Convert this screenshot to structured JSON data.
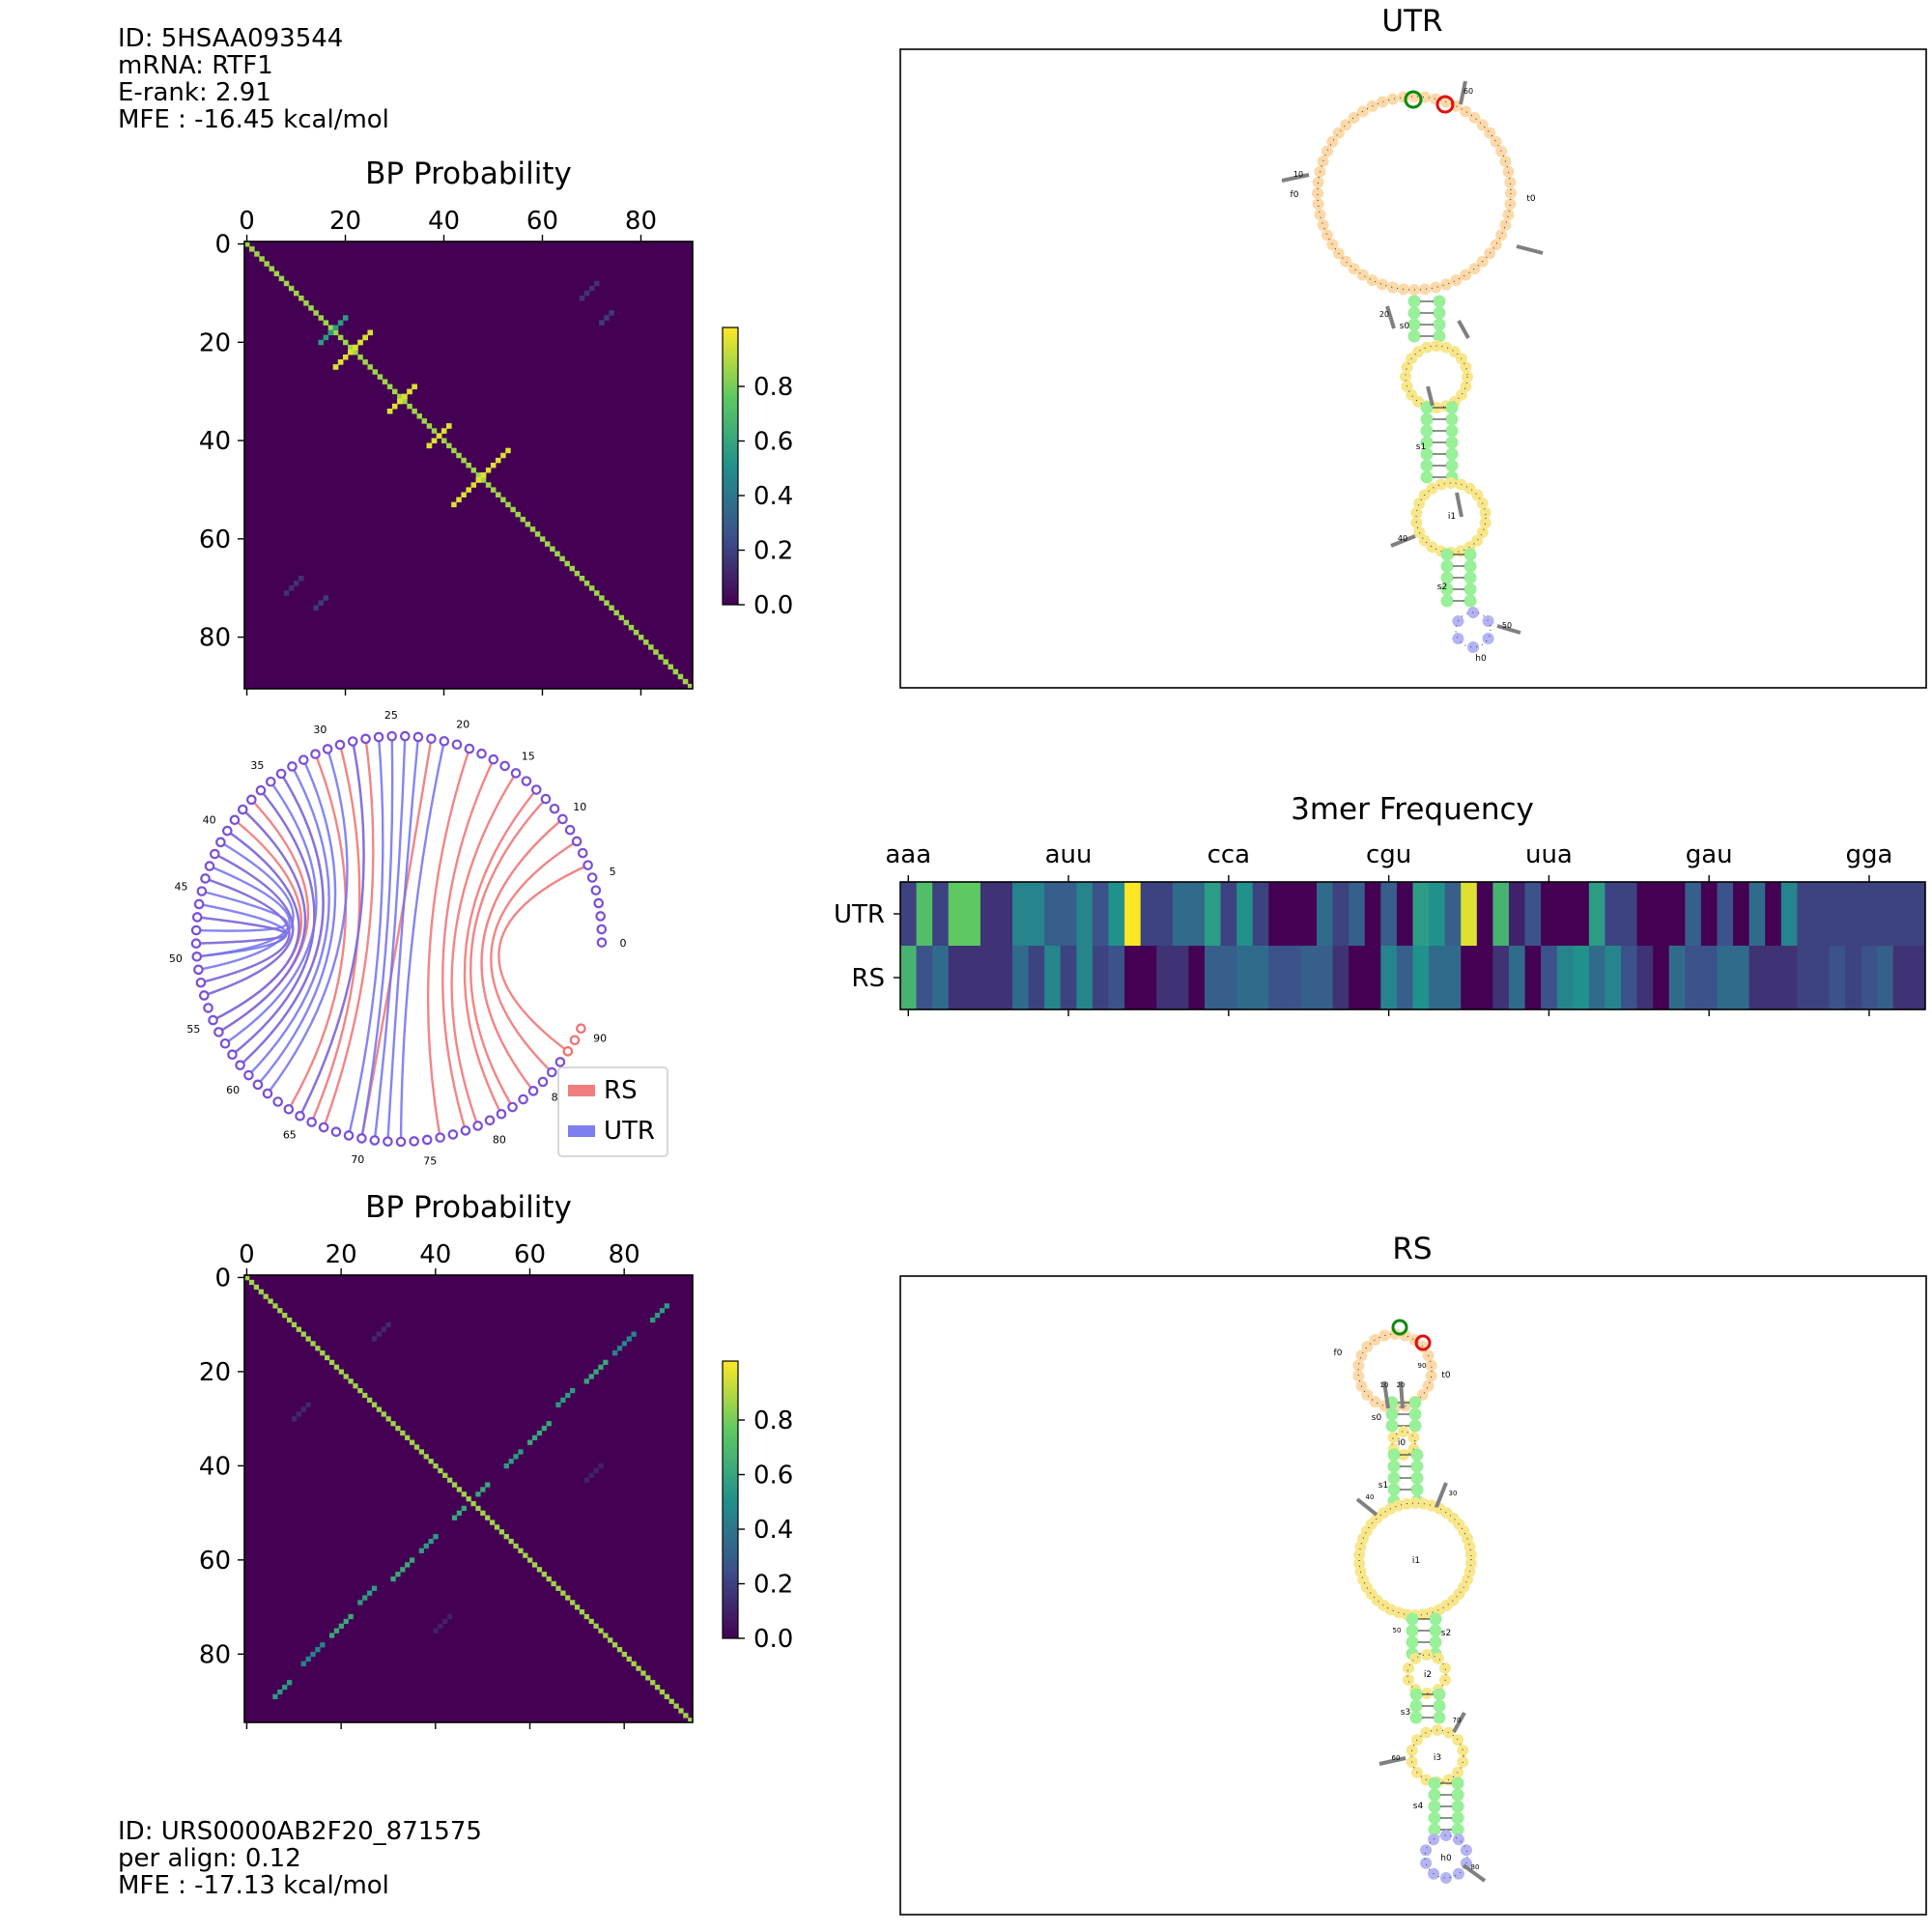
{
  "utr_info": {
    "id": "ID: 5HSAA093544",
    "mrna": "mRNA: RTF1",
    "erank": "E-rank: 2.91",
    "mfe": "MFE : -16.45 kcal/mol"
  },
  "rs_info": {
    "id": "ID: URS0000AB2F20_871575",
    "align": "per align: 0.12",
    "mfe": "MFE : -17.13 kcal/mol"
  },
  "colors": {
    "viridis_low": "#440154",
    "viridis_mid": "#21918c",
    "viridis_high": "#fde725",
    "rs_arc": "#f07070",
    "utr_arc": "#7070f0",
    "stem": "#98f098",
    "loop": "#f8e68a",
    "fiveprime": "#fcd9a8",
    "hairpin": "#b4b4f4"
  },
  "chart_data": [
    {
      "type": "heatmap",
      "id": "bp_utr",
      "title": "BP Probability",
      "size": 91,
      "xticks": [
        0,
        20,
        40,
        60,
        80
      ],
      "yticks": [
        0,
        20,
        40,
        60,
        80
      ],
      "colorbar_ticks": [
        "0.0",
        "0.2",
        "0.4",
        "0.6",
        "0.8"
      ],
      "diagonal": true,
      "pairs": [
        {
          "i": 18,
          "j": 25,
          "n": 8,
          "p": 0.95
        },
        {
          "i": 29,
          "j": 34,
          "n": 6,
          "p": 0.95
        },
        {
          "i": 37,
          "j": 41,
          "n": 5,
          "p": 0.95
        },
        {
          "i": 42,
          "j": 53,
          "n": 7,
          "p": 0.95
        },
        {
          "i": 15,
          "j": 20,
          "n": 4,
          "p": 0.55
        },
        {
          "i": 8,
          "j": 71,
          "n": 4,
          "p": 0.15
        },
        {
          "i": 14,
          "j": 74,
          "n": 3,
          "p": 0.18
        }
      ]
    },
    {
      "type": "arc",
      "id": "arc",
      "n": 91,
      "tick_labels": [
        "0",
        "5",
        "10",
        "15",
        "20",
        "25",
        "30",
        "35",
        "40",
        "45",
        "50",
        "55",
        "60",
        "65",
        "70",
        "75",
        "80",
        "85",
        "90"
      ],
      "legend": [
        "RS",
        "UTR"
      ],
      "rs_pairs": [
        [
          6,
          88
        ],
        [
          8,
          86
        ],
        [
          10,
          84
        ],
        [
          12,
          82
        ],
        [
          13,
          81
        ],
        [
          15,
          79
        ],
        [
          17,
          78
        ],
        [
          19,
          76
        ],
        [
          22,
          70
        ],
        [
          27,
          67
        ],
        [
          29,
          66
        ],
        [
          31,
          64
        ],
        [
          37,
          56
        ],
        [
          39,
          55
        ]
      ],
      "utr_pairs": [
        [
          21,
          73
        ],
        [
          23,
          72
        ],
        [
          24,
          71
        ],
        [
          25,
          70
        ],
        [
          26,
          69
        ],
        [
          30,
          62
        ],
        [
          32,
          61
        ],
        [
          33,
          60
        ],
        [
          41,
          51
        ],
        [
          43,
          50
        ],
        [
          45,
          48
        ],
        [
          46,
          50
        ],
        [
          35,
          57
        ]
      ],
      "both_pairs": [
        [
          28,
          65
        ],
        [
          34,
          59
        ],
        [
          36,
          58
        ],
        [
          38,
          56
        ],
        [
          40,
          55
        ],
        [
          42,
          53
        ],
        [
          44,
          52
        ],
        [
          47,
          49
        ]
      ]
    },
    {
      "type": "heatmap",
      "id": "kmer",
      "title": "3mer Frequency",
      "rows": [
        "UTR",
        "RS"
      ],
      "xtick_labels": [
        "aaa",
        "auu",
        "cca",
        "cgu",
        "uua",
        "gau",
        "gga"
      ],
      "utr_values": [
        0.2,
        0.7,
        0.2,
        0.75,
        0.75,
        0.15,
        0.15,
        0.45,
        0.45,
        0.3,
        0.3,
        0.45,
        0.25,
        0.5,
        1.0,
        0.2,
        0.2,
        0.35,
        0.35,
        0.55,
        0.2,
        0.5,
        0.2,
        0.0,
        0.0,
        0.0,
        0.35,
        0.2,
        0.3,
        0.0,
        0.3,
        0.0,
        0.55,
        0.5,
        0.3,
        0.95,
        0.0,
        0.65,
        0.1,
        0.25,
        0.0,
        0.0,
        0.0,
        0.55,
        0.2,
        0.2,
        0.0,
        0.0,
        0.0,
        0.3,
        0.0,
        0.25,
        0.0,
        0.35,
        0.0,
        0.45,
        0.2,
        0.2,
        0.2,
        0.2,
        0.2,
        0.2,
        0.2,
        0.2
      ],
      "rs_values": [
        0.65,
        0.25,
        0.35,
        0.15,
        0.15,
        0.15,
        0.15,
        0.35,
        0.2,
        0.45,
        0.2,
        0.45,
        0.2,
        0.25,
        0.0,
        0.0,
        0.15,
        0.15,
        0.0,
        0.3,
        0.3,
        0.35,
        0.35,
        0.25,
        0.25,
        0.3,
        0.3,
        0.15,
        0.0,
        0.0,
        0.45,
        0.3,
        0.5,
        0.35,
        0.35,
        0.0,
        0.0,
        0.15,
        0.35,
        0.0,
        0.25,
        0.45,
        0.5,
        0.35,
        0.45,
        0.25,
        0.15,
        0.0,
        0.35,
        0.25,
        0.25,
        0.35,
        0.35,
        0.15,
        0.15,
        0.15,
        0.2,
        0.2,
        0.25,
        0.2,
        0.25,
        0.3,
        0.15,
        0.15
      ]
    },
    {
      "type": "heatmap",
      "id": "bp_rs",
      "title": "BP Probability",
      "size": 95,
      "xticks": [
        0,
        20,
        40,
        60,
        80
      ],
      "yticks": [
        0,
        20,
        40,
        60,
        80
      ],
      "colorbar_ticks": [
        "0.0",
        "0.2",
        "0.4",
        "0.6",
        "0.8"
      ],
      "diagonal": true,
      "pairs": [
        {
          "i": 6,
          "j": 89,
          "n": 4,
          "p": 0.55
        },
        {
          "i": 12,
          "j": 82,
          "n": 5,
          "p": 0.45
        },
        {
          "i": 18,
          "j": 76,
          "n": 5,
          "p": 0.6
        },
        {
          "i": 24,
          "j": 69,
          "n": 4,
          "p": 0.55
        },
        {
          "i": 31,
          "j": 64,
          "n": 5,
          "p": 0.6
        },
        {
          "i": 37,
          "j": 58,
          "n": 4,
          "p": 0.55
        },
        {
          "i": 44,
          "j": 51,
          "n": 3,
          "p": 0.6
        },
        {
          "i": 10,
          "j": 30,
          "n": 4,
          "p": 0.12
        },
        {
          "i": 40,
          "j": 75,
          "n": 4,
          "p": 0.1
        }
      ]
    },
    {
      "type": "structure",
      "id": "utr_struct",
      "title": "UTR",
      "labels": [
        "f0",
        "t0",
        "s0",
        "s1",
        "i1",
        "s2",
        "h0"
      ],
      "ticks": [
        "10",
        "20",
        "60",
        "50",
        "40"
      ]
    },
    {
      "type": "structure",
      "id": "rs_struct",
      "title": "RS",
      "labels": [
        "f0",
        "t0",
        "s0",
        "i0",
        "s1",
        "i1",
        "s2",
        "i2",
        "s3",
        "i3",
        "s4",
        "h0"
      ],
      "ticks": [
        "10",
        "20",
        "30",
        "40",
        "50",
        "60",
        "70",
        "80",
        "90"
      ]
    }
  ]
}
